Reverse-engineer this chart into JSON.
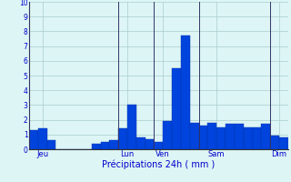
{
  "values": [
    1.3,
    1.4,
    0.6,
    0.0,
    0.0,
    0.0,
    0.0,
    0.4,
    0.5,
    0.6,
    1.4,
    3.0,
    0.8,
    0.7,
    0.5,
    1.9,
    5.5,
    7.7,
    1.8,
    1.6,
    1.8,
    1.5,
    1.7,
    1.7,
    1.5,
    1.5,
    1.7,
    0.9,
    0.8
  ],
  "day_labels": [
    "Jeu",
    "Lun",
    "Ven",
    "Sam",
    "Dim"
  ],
  "day_tick_positions": [
    1.0,
    10.5,
    14.5,
    20.5,
    27.5
  ],
  "day_line_positions": [
    0,
    10,
    14,
    19,
    27
  ],
  "xlabel": "Précipitations 24h ( mm )",
  "ylim": [
    0,
    10
  ],
  "yticks": [
    0,
    1,
    2,
    3,
    4,
    5,
    6,
    7,
    8,
    9,
    10
  ],
  "bar_color": "#0044dd",
  "bar_edge_color": "#0033aa",
  "bg_color": "#ddf5f5",
  "grid_color": "#aacccc",
  "label_color": "#0000cc",
  "axis_line_color": "#333333",
  "separator_color": "#333366"
}
